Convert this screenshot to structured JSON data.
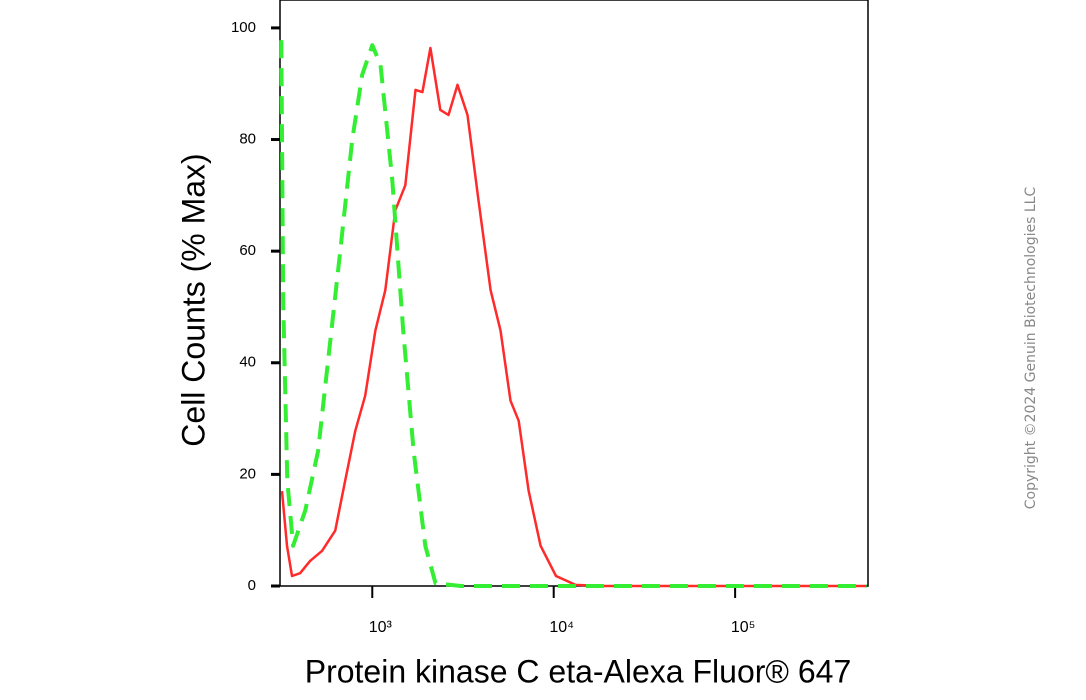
{
  "chart_data": {
    "type": "line",
    "x_scale": "log",
    "xlabel": "Protein kinase C eta-Alexa Fluor® 647",
    "ylabel": "Cell Counts (% Max)",
    "annotation": "Copyright ©2024 Genuin Biotechnologies LLC",
    "xlim": [
      310,
      540000
    ],
    "ylim": [
      0,
      105
    ],
    "xticks": [
      {
        "value": 1000,
        "label": "10³"
      },
      {
        "value": 10000,
        "label": "10⁴"
      },
      {
        "value": 100000,
        "label": "10⁵"
      }
    ],
    "yticks": [
      0,
      20,
      40,
      60,
      80,
      100
    ],
    "series": [
      {
        "color": "#ff2a2a",
        "dash": false,
        "x": [
          318,
          339,
          361,
          400,
          454,
          529,
          625,
          709,
          806,
          914,
          1040,
          1180,
          1340,
          1520,
          1730,
          1890,
          2090,
          2370,
          2630,
          2950,
          3350,
          3850,
          4490,
          5090,
          5780,
          6410,
          7270,
          8470,
          10300,
          13200,
          18200,
          530000
        ],
        "values": [
          17,
          7.2,
          1.8,
          2.3,
          4.5,
          6.3,
          9.9,
          18.9,
          27.8,
          34.1,
          45.8,
          53,
          67.3,
          71.8,
          88.9,
          88.5,
          96.4,
          85.3,
          84.4,
          89.8,
          84.4,
          69.1,
          53,
          45.8,
          33.2,
          29.6,
          17.1,
          7.2,
          1.8,
          0.2,
          0,
          0
        ]
      },
      {
        "color": "#33ee33",
        "dash": true,
        "x": [
          315,
          323,
          340,
          366,
          427,
          503,
          571,
          666,
          775,
          880,
          1000,
          1110,
          1290,
          1480,
          1690,
          1960,
          2230,
          3070,
          530000
        ],
        "values": [
          97.8,
          51,
          18.9,
          7.2,
          13.5,
          24.2,
          40.4,
          60.1,
          79.9,
          91.6,
          96.9,
          93.4,
          72.7,
          45.8,
          24.2,
          7.2,
          0.5,
          0,
          0
        ]
      }
    ]
  }
}
